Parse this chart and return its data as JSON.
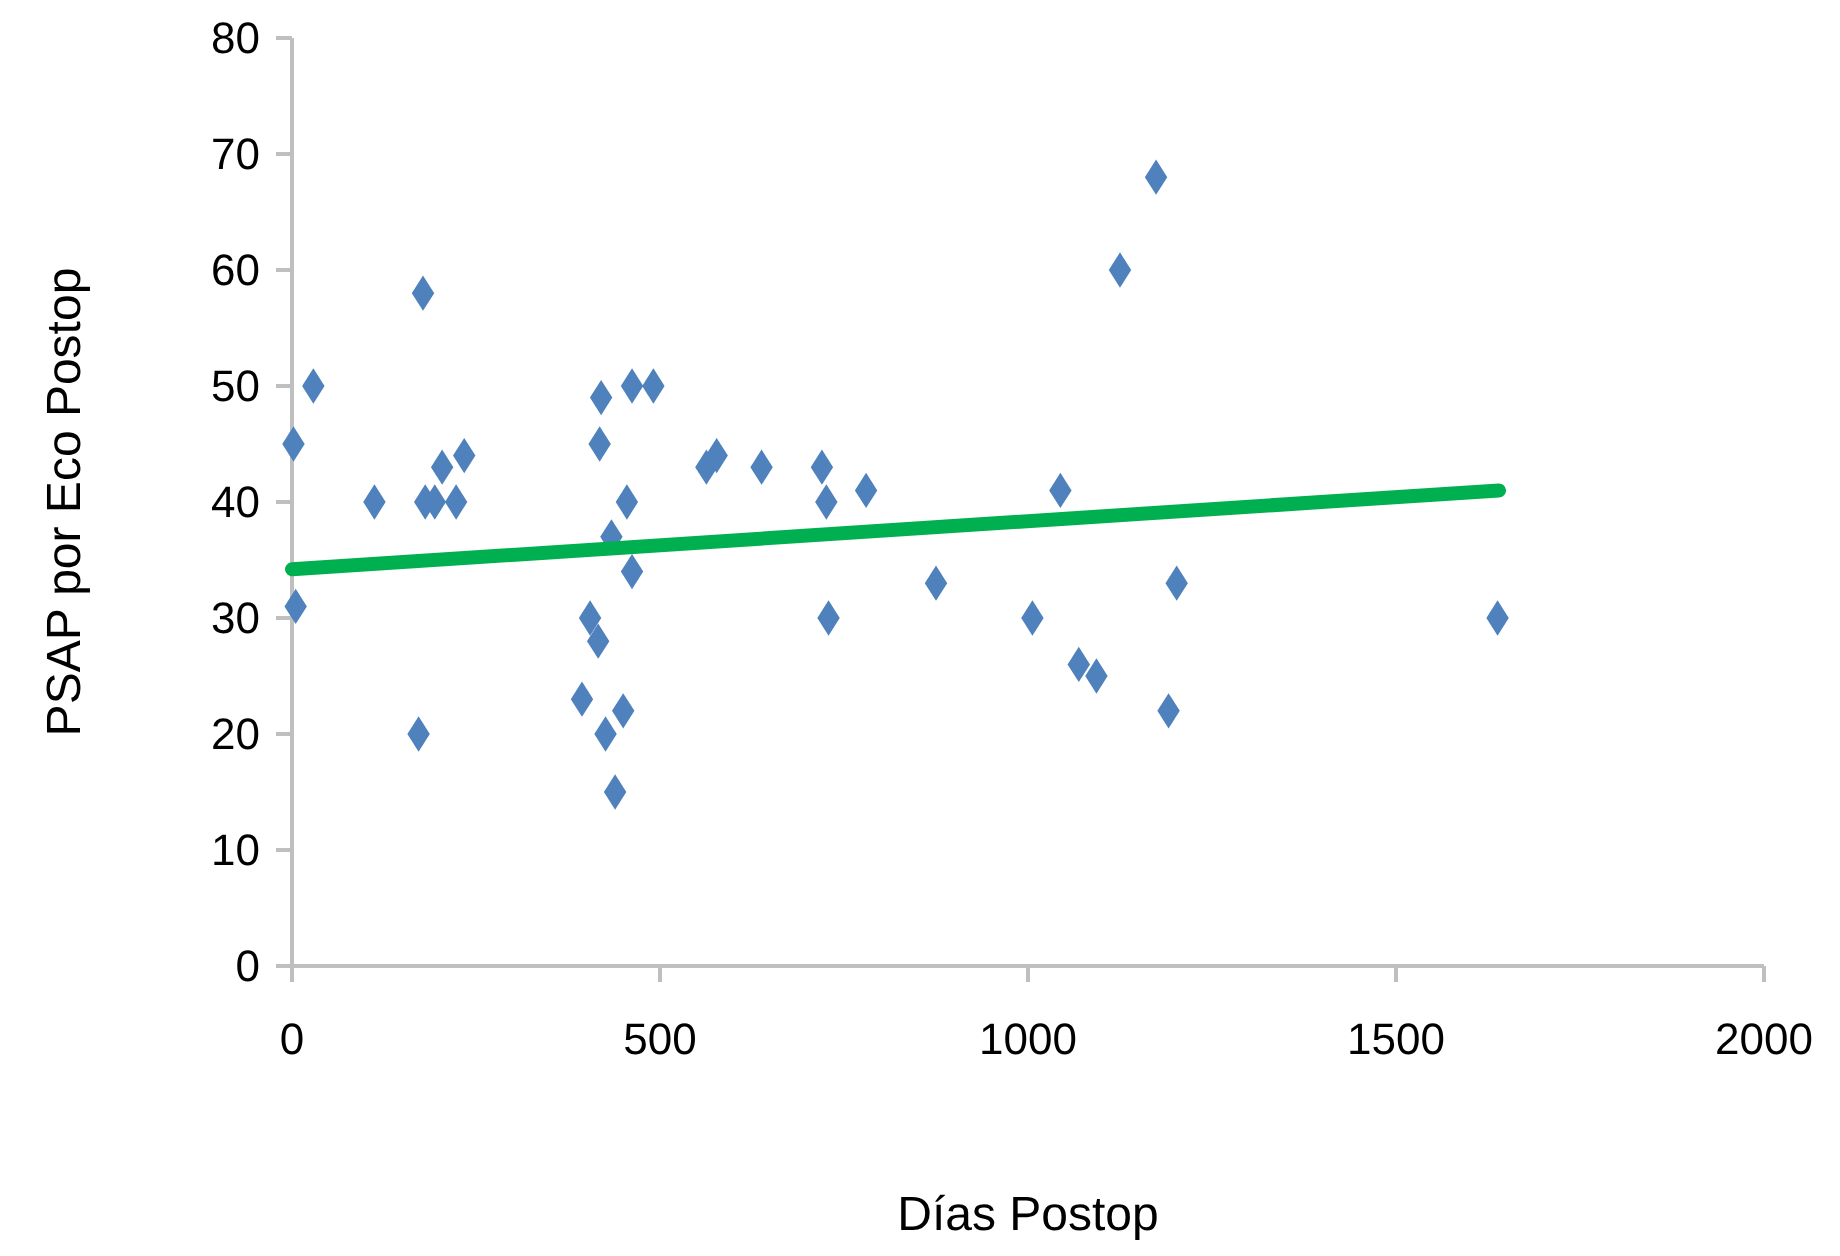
{
  "chart_data": {
    "type": "scatter",
    "xlabel": "Días Postop",
    "ylabel": "PSAP por Eco Postop",
    "xlim": [
      0,
      2000
    ],
    "ylim": [
      0,
      80
    ],
    "xticks": [
      0,
      500,
      1000,
      1500,
      2000
    ],
    "yticks": [
      0,
      10,
      20,
      30,
      40,
      50,
      60,
      70,
      80
    ],
    "grid": false,
    "marker": "diamond",
    "series": [
      {
        "color": "#4f81bd",
        "x": [
          2,
          5,
          29,
          112,
          178,
          172,
          181,
          194,
          223,
          204,
          234,
          394,
          405,
          416,
          426,
          439,
          450,
          434,
          462,
          455,
          418,
          420,
          462,
          491,
          563,
          577,
          638,
          720,
          726,
          780,
          875,
          729,
          1044,
          1006,
          1069,
          1093,
          1191,
          1202,
          1125,
          1174,
          1638
        ],
        "values": [
          45,
          31,
          50,
          40,
          58,
          20,
          40,
          40,
          40,
          43,
          44,
          23,
          30,
          28,
          20,
          15,
          22,
          37,
          34,
          40,
          45,
          49,
          50,
          50,
          43,
          44,
          43,
          43,
          40,
          41,
          33,
          30,
          41,
          30,
          26,
          25,
          22,
          33,
          60,
          68,
          30
        ]
      },
      {
        "type": "line",
        "color": "#00b050",
        "marker": "none",
        "x": [
          0,
          1640
        ],
        "values": [
          34.2,
          41
        ]
      }
    ]
  }
}
